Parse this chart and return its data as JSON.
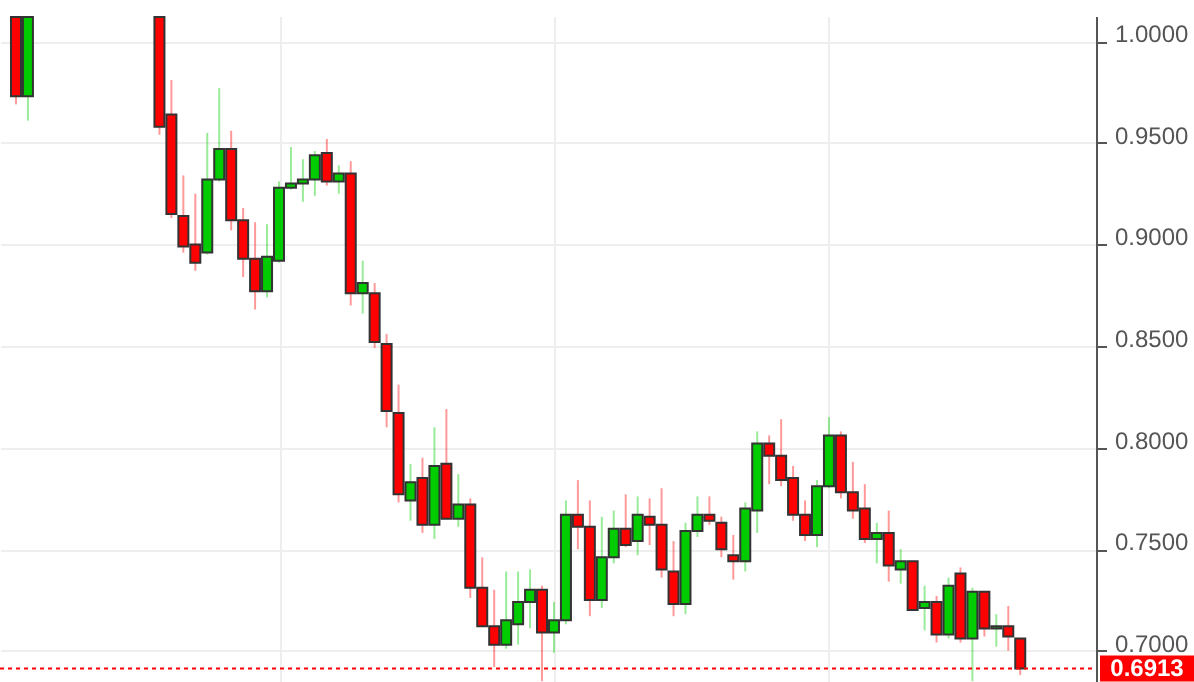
{
  "chart_data": {
    "type": "candlestick",
    "categories": [
      null,
      null,
      null,
      null,
      null,
      null,
      null,
      null,
      null,
      null,
      null,
      null,
      null,
      null,
      null,
      null,
      null,
      null,
      null,
      null,
      null,
      null,
      null,
      null,
      null,
      null,
      null,
      null,
      null,
      null,
      null,
      null,
      null,
      null,
      null,
      null,
      null,
      null,
      null,
      null,
      null,
      null,
      null,
      null,
      null,
      null,
      null,
      null,
      null,
      null,
      null,
      null,
      null,
      null,
      null,
      null,
      null,
      null,
      null,
      null,
      null,
      null,
      null,
      null,
      null,
      null,
      null,
      null,
      null,
      null,
      null,
      null,
      null,
      null,
      null,
      null,
      null,
      null,
      null,
      null,
      null,
      null,
      null,
      null,
      null,
      null,
      null,
      null,
      null,
      null
    ],
    "ohlc": [
      [
        1.012,
        1.012,
        0.969,
        0.973
      ],
      [
        0.973,
        1.012,
        0.961,
        1.012
      ],
      null,
      null,
      null,
      null,
      null,
      null,
      null,
      null,
      null,
      null,
      [
        1.012,
        1.012,
        0.954,
        0.958
      ],
      [
        0.964,
        0.981,
        0.913,
        0.915
      ],
      [
        0.914,
        0.934,
        0.896,
        0.899
      ],
      [
        0.9,
        0.925,
        0.887,
        0.891
      ],
      [
        0.896,
        0.955,
        0.895,
        0.932
      ],
      [
        0.932,
        0.977,
        0.931,
        0.947
      ],
      [
        0.947,
        0.956,
        0.907,
        0.912
      ],
      [
        0.912,
        0.918,
        0.884,
        0.893
      ],
      [
        0.893,
        0.911,
        0.868,
        0.877
      ],
      [
        0.877,
        0.91,
        0.874,
        0.894
      ],
      [
        0.892,
        0.931,
        0.891,
        0.928
      ],
      [
        0.928,
        0.948,
        0.927,
        0.93
      ],
      [
        0.93,
        0.942,
        0.921,
        0.932
      ],
      [
        0.932,
        0.946,
        0.924,
        0.944
      ],
      [
        0.945,
        0.952,
        0.929,
        0.931
      ],
      [
        0.931,
        0.939,
        0.925,
        0.935
      ],
      [
        0.935,
        0.941,
        0.87,
        0.876
      ],
      [
        0.876,
        0.892,
        0.866,
        0.881
      ],
      [
        0.876,
        0.881,
        0.849,
        0.852
      ],
      [
        0.851,
        0.856,
        0.81,
        0.818
      ],
      [
        0.817,
        0.831,
        0.773,
        0.777
      ],
      [
        0.774,
        0.792,
        0.764,
        0.783
      ],
      [
        0.785,
        0.795,
        0.758,
        0.762
      ],
      [
        0.762,
        0.81,
        0.755,
        0.791
      ],
      [
        0.792,
        0.819,
        0.765,
        0.765
      ],
      [
        0.765,
        0.787,
        0.761,
        0.772
      ],
      [
        0.772,
        0.775,
        0.726,
        0.731
      ],
      [
        0.731,
        0.746,
        0.712,
        0.712
      ],
      [
        0.712,
        0.73,
        0.692,
        0.703
      ],
      [
        0.703,
        0.739,
        0.701,
        0.715
      ],
      [
        0.713,
        0.739,
        0.703,
        0.724
      ],
      [
        0.724,
        0.74,
        0.711,
        0.73
      ],
      [
        0.73,
        0.732,
        0.685,
        0.709
      ],
      [
        0.709,
        0.724,
        0.699,
        0.715
      ],
      [
        0.715,
        0.774,
        0.713,
        0.767
      ],
      [
        0.767,
        0.784,
        0.75,
        0.761
      ],
      [
        0.761,
        0.774,
        0.717,
        0.725
      ],
      [
        0.725,
        0.766,
        0.721,
        0.746
      ],
      [
        0.746,
        0.769,
        0.743,
        0.76
      ],
      [
        0.76,
        0.777,
        0.751,
        0.752
      ],
      [
        0.754,
        0.776,
        0.747,
        0.767
      ],
      [
        0.766,
        0.775,
        0.752,
        0.762
      ],
      [
        0.762,
        0.78,
        0.736,
        0.74
      ],
      [
        0.739,
        0.754,
        0.717,
        0.723
      ],
      [
        0.723,
        0.763,
        0.718,
        0.759
      ],
      [
        0.759,
        0.776,
        0.756,
        0.767
      ],
      [
        0.767,
        0.776,
        0.762,
        0.764
      ],
      [
        0.763,
        0.766,
        0.746,
        0.75
      ],
      [
        0.747,
        0.757,
        0.735,
        0.744
      ],
      [
        0.744,
        0.773,
        0.739,
        0.77
      ],
      [
        0.769,
        0.808,
        0.758,
        0.802
      ],
      [
        0.802,
        0.806,
        0.782,
        0.796
      ],
      [
        0.796,
        0.814,
        0.781,
        0.784
      ],
      [
        0.785,
        0.791,
        0.764,
        0.767
      ],
      [
        0.767,
        0.774,
        0.754,
        0.757
      ],
      [
        0.757,
        0.784,
        0.751,
        0.781
      ],
      [
        0.781,
        0.815,
        0.78,
        0.806
      ],
      [
        0.806,
        0.808,
        0.775,
        0.778
      ],
      [
        0.778,
        0.793,
        0.765,
        0.769
      ],
      [
        0.77,
        0.782,
        0.753,
        0.755
      ],
      [
        0.755,
        0.763,
        0.743,
        0.758
      ],
      [
        0.758,
        0.769,
        0.734,
        0.742
      ],
      [
        0.74,
        0.75,
        0.733,
        0.744
      ],
      [
        0.744,
        0.744,
        0.72,
        0.72
      ],
      [
        0.721,
        0.732,
        0.71,
        0.724
      ],
      [
        0.724,
        0.727,
        0.704,
        0.708
      ],
      [
        0.708,
        0.736,
        0.706,
        0.732
      ],
      [
        0.738,
        0.741,
        0.704,
        0.706
      ],
      [
        0.706,
        0.731,
        0.685,
        0.729
      ],
      [
        0.729,
        0.729,
        0.707,
        0.711
      ],
      [
        0.711,
        0.718,
        0.702,
        0.712
      ],
      [
        0.712,
        0.722,
        0.7,
        0.707
      ],
      [
        0.706,
        0.706,
        0.688,
        0.6913
      ],
      null,
      null,
      null,
      null,
      null
    ],
    "colors": [
      "#ff0000",
      "#00cc00",
      null,
      null,
      null,
      null,
      null,
      null,
      null,
      null,
      null,
      null,
      "#ff0000",
      "#ff0000",
      "#ff0000",
      "#ff0000",
      "#00cc00",
      "#00cc00",
      "#ff0000",
      "#ff0000",
      "#ff0000",
      "#00cc00",
      "#00cc00",
      "#00cc00",
      "#00cc00",
      "#00cc00",
      "#ff0000",
      "#00cc00",
      "#ff0000",
      "#00cc00",
      "#ff0000",
      "#ff0000",
      "#ff0000",
      "#00cc00",
      "#ff0000",
      "#00cc00",
      "#ff0000",
      "#00cc00",
      "#ff0000",
      "#ff0000",
      "#ff0000",
      "#00cc00",
      "#00cc00",
      "#00cc00",
      "#ff0000",
      "#00cc00",
      "#00cc00",
      "#ff0000",
      "#ff0000",
      "#00cc00",
      "#00cc00",
      "#ff0000",
      "#00cc00",
      "#ff0000",
      "#ff0000",
      "#ff0000",
      "#00cc00",
      "#00cc00",
      "#ff0000",
      "#ff0000",
      "#ff0000",
      "#00cc00",
      "#00cc00",
      "#ff0000",
      "#ff0000",
      "#ff0000",
      "#ff0000",
      "#00cc00",
      "#00cc00",
      "#ff0000",
      "#ff0000",
      "#ff0000",
      "#00cc00",
      "#ff0000",
      "#00cc00",
      "#ff0000",
      "#00cc00",
      "#ff0000",
      "#00cc00",
      "#ff0000",
      "#00cc00",
      "#ff0000",
      "#00cc00",
      "#ff0000",
      "#ff0000",
      null,
      null,
      null,
      null,
      null
    ],
    "ylim": [
      0.6846,
      1.0125
    ],
    "yticks": [
      {
        "value": 0.7,
        "label": "0.7000"
      },
      {
        "value": 0.75,
        "label": "0.7500"
      },
      {
        "value": 0.8,
        "label": "0.8000"
      },
      {
        "value": 0.85,
        "label": "0.8500"
      },
      {
        "value": 0.9,
        "label": "0.9000"
      },
      {
        "value": 0.95,
        "label": "0.9500"
      },
      {
        "value": 1.0,
        "label": "1.0000"
      }
    ],
    "ref_lines": [
      {
        "axis": "y",
        "value": 0.6913,
        "label": "0.6913",
        "color": "#ff0000",
        "line_style": "dotted"
      }
    ],
    "grid": true,
    "tick_labels": "y"
  }
}
